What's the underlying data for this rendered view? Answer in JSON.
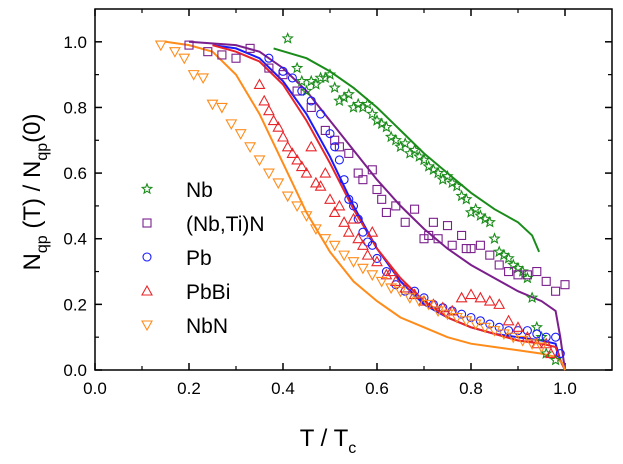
{
  "chart_data": {
    "type": "scatter",
    "xlabel": {
      "main": "T / T",
      "sub": "c"
    },
    "ylabel": {
      "p1": "N",
      "s1": "qp",
      "p2": " (T) / N",
      "s2": "qp",
      "p3": "(0)"
    },
    "xlim": [
      0.0,
      1.1
    ],
    "ylim": [
      0.0,
      1.1
    ],
    "xticks": [
      "0.0",
      "0.2",
      "0.4",
      "0.6",
      "0.8",
      "1.0"
    ],
    "yticks": [
      "0.0",
      "0.2",
      "0.4",
      "0.6",
      "0.8",
      "1.0"
    ],
    "grid": false,
    "legend_position": "left",
    "series": [
      {
        "name": "Nb",
        "marker": "star",
        "color": "#1a8c1a",
        "points": [
          [
            0.41,
            1.01
          ],
          [
            0.43,
            0.92
          ],
          [
            0.44,
            0.88
          ],
          [
            0.45,
            0.85
          ],
          [
            0.46,
            0.88
          ],
          [
            0.47,
            0.87
          ],
          [
            0.48,
            0.89
          ],
          [
            0.49,
            0.89
          ],
          [
            0.5,
            0.9
          ],
          [
            0.51,
            0.86
          ],
          [
            0.52,
            0.82
          ],
          [
            0.53,
            0.83
          ],
          [
            0.54,
            0.84
          ],
          [
            0.55,
            0.8
          ],
          [
            0.56,
            0.81
          ],
          [
            0.57,
            0.8
          ],
          [
            0.58,
            0.81
          ],
          [
            0.59,
            0.78
          ],
          [
            0.6,
            0.76
          ],
          [
            0.61,
            0.75
          ],
          [
            0.62,
            0.74
          ],
          [
            0.63,
            0.71
          ],
          [
            0.64,
            0.7
          ],
          [
            0.65,
            0.68
          ],
          [
            0.66,
            0.69
          ],
          [
            0.67,
            0.66
          ],
          [
            0.68,
            0.67
          ],
          [
            0.69,
            0.65
          ],
          [
            0.7,
            0.64
          ],
          [
            0.71,
            0.62
          ],
          [
            0.72,
            0.61
          ],
          [
            0.73,
            0.6
          ],
          [
            0.74,
            0.58
          ],
          [
            0.75,
            0.59
          ],
          [
            0.76,
            0.57
          ],
          [
            0.77,
            0.56
          ],
          [
            0.78,
            0.53
          ],
          [
            0.79,
            0.52
          ],
          [
            0.8,
            0.48
          ],
          [
            0.81,
            0.49
          ],
          [
            0.82,
            0.47
          ],
          [
            0.83,
            0.46
          ],
          [
            0.84,
            0.45
          ],
          [
            0.85,
            0.4
          ],
          [
            0.86,
            0.36
          ],
          [
            0.87,
            0.35
          ],
          [
            0.88,
            0.34
          ],
          [
            0.89,
            0.32
          ],
          [
            0.9,
            0.31
          ],
          [
            0.91,
            0.3
          ],
          [
            0.92,
            0.28
          ],
          [
            0.93,
            0.22
          ],
          [
            0.94,
            0.13
          ],
          [
            0.95,
            0.1
          ],
          [
            0.96,
            0.05
          ],
          [
            0.98,
            0.03
          ]
        ],
        "curve": [
          [
            0.38,
            0.98
          ],
          [
            0.45,
            0.95
          ],
          [
            0.5,
            0.91
          ],
          [
            0.55,
            0.86
          ],
          [
            0.6,
            0.8
          ],
          [
            0.65,
            0.73
          ],
          [
            0.7,
            0.66
          ],
          [
            0.75,
            0.6
          ],
          [
            0.8,
            0.54
          ],
          [
            0.85,
            0.49
          ],
          [
            0.9,
            0.45
          ],
          [
            0.93,
            0.41
          ],
          [
            0.945,
            0.36
          ]
        ]
      },
      {
        "name": "(Nb,Ti)N",
        "marker": "square",
        "color": "#7b1f8c",
        "points": [
          [
            0.2,
            0.99
          ],
          [
            0.24,
            0.97
          ],
          [
            0.27,
            0.96
          ],
          [
            0.3,
            0.95
          ],
          [
            0.33,
            0.98
          ],
          [
            0.37,
            0.92
          ],
          [
            0.4,
            0.9
          ],
          [
            0.43,
            0.85
          ],
          [
            0.46,
            0.8
          ],
          [
            0.49,
            0.73
          ],
          [
            0.51,
            0.7
          ],
          [
            0.52,
            0.68
          ],
          [
            0.54,
            0.66
          ],
          [
            0.56,
            0.6
          ],
          [
            0.57,
            0.58
          ],
          [
            0.59,
            0.61
          ],
          [
            0.6,
            0.55
          ],
          [
            0.61,
            0.52
          ],
          [
            0.62,
            0.48
          ],
          [
            0.64,
            0.5
          ],
          [
            0.66,
            0.45
          ],
          [
            0.68,
            0.49
          ],
          [
            0.7,
            0.4
          ],
          [
            0.71,
            0.41
          ],
          [
            0.72,
            0.45
          ],
          [
            0.73,
            0.4
          ],
          [
            0.75,
            0.44
          ],
          [
            0.76,
            0.38
          ],
          [
            0.78,
            0.41
          ],
          [
            0.79,
            0.37
          ],
          [
            0.8,
            0.37
          ],
          [
            0.82,
            0.38
          ],
          [
            0.84,
            0.35
          ],
          [
            0.86,
            0.32
          ],
          [
            0.88,
            0.3
          ],
          [
            0.9,
            0.29
          ],
          [
            0.92,
            0.29
          ],
          [
            0.94,
            0.3
          ],
          [
            0.96,
            0.27
          ],
          [
            0.98,
            0.24
          ],
          [
            1.0,
            0.26
          ]
        ],
        "curve": [
          [
            0.2,
            1.0
          ],
          [
            0.3,
            0.99
          ],
          [
            0.35,
            0.97
          ],
          [
            0.4,
            0.92
          ],
          [
            0.45,
            0.85
          ],
          [
            0.5,
            0.76
          ],
          [
            0.55,
            0.67
          ],
          [
            0.6,
            0.58
          ],
          [
            0.65,
            0.5
          ],
          [
            0.7,
            0.43
          ],
          [
            0.75,
            0.37
          ],
          [
            0.8,
            0.32
          ],
          [
            0.85,
            0.28
          ],
          [
            0.9,
            0.24
          ],
          [
            0.95,
            0.21
          ],
          [
            0.98,
            0.18
          ],
          [
            0.99,
            0.1
          ],
          [
            1.0,
            0.0
          ]
        ]
      },
      {
        "name": "Pb",
        "marker": "circle",
        "color": "#1a1aff",
        "points": [
          [
            0.37,
            0.95
          ],
          [
            0.4,
            0.91
          ],
          [
            0.42,
            0.89
          ],
          [
            0.44,
            0.85
          ],
          [
            0.46,
            0.82
          ],
          [
            0.48,
            0.78
          ],
          [
            0.5,
            0.72
          ],
          [
            0.51,
            0.68
          ],
          [
            0.52,
            0.64
          ],
          [
            0.53,
            0.58
          ],
          [
            0.54,
            0.52
          ],
          [
            0.55,
            0.5
          ],
          [
            0.56,
            0.46
          ],
          [
            0.57,
            0.42
          ],
          [
            0.58,
            0.39
          ],
          [
            0.59,
            0.38
          ],
          [
            0.6,
            0.34
          ],
          [
            0.62,
            0.3
          ],
          [
            0.64,
            0.26
          ],
          [
            0.66,
            0.24
          ],
          [
            0.68,
            0.24
          ],
          [
            0.7,
            0.22
          ],
          [
            0.72,
            0.2
          ],
          [
            0.74,
            0.19
          ],
          [
            0.76,
            0.18
          ],
          [
            0.78,
            0.17
          ],
          [
            0.8,
            0.16
          ],
          [
            0.82,
            0.15
          ],
          [
            0.84,
            0.14
          ],
          [
            0.86,
            0.13
          ],
          [
            0.88,
            0.12
          ],
          [
            0.9,
            0.12
          ],
          [
            0.92,
            0.12
          ],
          [
            0.94,
            0.11
          ],
          [
            0.96,
            0.1
          ],
          [
            0.98,
            0.1
          ],
          [
            0.99,
            0.05
          ]
        ],
        "curve": [
          [
            0.25,
            0.99
          ],
          [
            0.3,
            0.98
          ],
          [
            0.35,
            0.95
          ],
          [
            0.4,
            0.88
          ],
          [
            0.45,
            0.78
          ],
          [
            0.5,
            0.65
          ],
          [
            0.55,
            0.5
          ],
          [
            0.6,
            0.37
          ],
          [
            0.65,
            0.27
          ],
          [
            0.7,
            0.2
          ],
          [
            0.75,
            0.16
          ],
          [
            0.8,
            0.13
          ],
          [
            0.85,
            0.11
          ],
          [
            0.9,
            0.1
          ],
          [
            0.95,
            0.09
          ],
          [
            0.98,
            0.08
          ],
          [
            0.99,
            0.03
          ],
          [
            1.0,
            0.0
          ]
        ]
      },
      {
        "name": "PbBi",
        "marker": "triangle-up",
        "color": "#e8262a",
        "points": [
          [
            0.35,
            0.87
          ],
          [
            0.36,
            0.82
          ],
          [
            0.37,
            0.79
          ],
          [
            0.38,
            0.76
          ],
          [
            0.39,
            0.74
          ],
          [
            0.4,
            0.71
          ],
          [
            0.41,
            0.68
          ],
          [
            0.42,
            0.66
          ],
          [
            0.43,
            0.64
          ],
          [
            0.44,
            0.62
          ],
          [
            0.45,
            0.6
          ],
          [
            0.46,
            0.68
          ],
          [
            0.47,
            0.57
          ],
          [
            0.48,
            0.56
          ],
          [
            0.49,
            0.6
          ],
          [
            0.5,
            0.52
          ],
          [
            0.51,
            0.48
          ],
          [
            0.52,
            0.5
          ],
          [
            0.53,
            0.45
          ],
          [
            0.54,
            0.42
          ],
          [
            0.55,
            0.46
          ],
          [
            0.56,
            0.4
          ],
          [
            0.57,
            0.38
          ],
          [
            0.58,
            0.35
          ],
          [
            0.59,
            0.42
          ],
          [
            0.6,
            0.33
          ],
          [
            0.62,
            0.29
          ],
          [
            0.63,
            0.3
          ],
          [
            0.64,
            0.27
          ],
          [
            0.66,
            0.25
          ],
          [
            0.68,
            0.23
          ],
          [
            0.7,
            0.21
          ],
          [
            0.72,
            0.2
          ],
          [
            0.74,
            0.19
          ],
          [
            0.76,
            0.18
          ],
          [
            0.78,
            0.22
          ],
          [
            0.8,
            0.23
          ],
          [
            0.82,
            0.22
          ],
          [
            0.84,
            0.21
          ],
          [
            0.86,
            0.2
          ],
          [
            0.88,
            0.15
          ],
          [
            0.9,
            0.13
          ],
          [
            0.92,
            0.1
          ],
          [
            0.94,
            0.08
          ],
          [
            0.96,
            0.08
          ],
          [
            0.97,
            0.05
          ]
        ],
        "curve": [
          [
            0.25,
            0.99
          ],
          [
            0.3,
            0.97
          ],
          [
            0.35,
            0.94
          ],
          [
            0.4,
            0.87
          ],
          [
            0.45,
            0.76
          ],
          [
            0.5,
            0.63
          ],
          [
            0.55,
            0.49
          ],
          [
            0.6,
            0.37
          ],
          [
            0.65,
            0.28
          ],
          [
            0.7,
            0.21
          ],
          [
            0.75,
            0.16
          ],
          [
            0.8,
            0.13
          ],
          [
            0.85,
            0.11
          ],
          [
            0.9,
            0.09
          ],
          [
            0.95,
            0.08
          ],
          [
            0.98,
            0.07
          ],
          [
            0.99,
            0.03
          ],
          [
            1.0,
            0.0
          ]
        ]
      },
      {
        "name": "NbN",
        "marker": "triangle-down",
        "color": "#ff8c1a",
        "points": [
          [
            0.14,
            0.99
          ],
          [
            0.17,
            0.97
          ],
          [
            0.19,
            0.95
          ],
          [
            0.21,
            0.9
          ],
          [
            0.23,
            0.89
          ],
          [
            0.25,
            0.81
          ],
          [
            0.27,
            0.8
          ],
          [
            0.29,
            0.75
          ],
          [
            0.31,
            0.72
          ],
          [
            0.33,
            0.68
          ],
          [
            0.35,
            0.64
          ],
          [
            0.37,
            0.6
          ],
          [
            0.39,
            0.57
          ],
          [
            0.41,
            0.53
          ],
          [
            0.43,
            0.5
          ],
          [
            0.45,
            0.47
          ],
          [
            0.47,
            0.43
          ],
          [
            0.49,
            0.4
          ],
          [
            0.51,
            0.38
          ],
          [
            0.53,
            0.35
          ],
          [
            0.55,
            0.33
          ],
          [
            0.57,
            0.31
          ],
          [
            0.59,
            0.29
          ],
          [
            0.61,
            0.27
          ],
          [
            0.63,
            0.25
          ],
          [
            0.65,
            0.24
          ],
          [
            0.67,
            0.22
          ],
          [
            0.69,
            0.21
          ],
          [
            0.71,
            0.2
          ],
          [
            0.73,
            0.18
          ],
          [
            0.75,
            0.17
          ],
          [
            0.77,
            0.16
          ],
          [
            0.79,
            0.15
          ],
          [
            0.81,
            0.14
          ],
          [
            0.83,
            0.13
          ],
          [
            0.85,
            0.12
          ],
          [
            0.87,
            0.11
          ],
          [
            0.89,
            0.1
          ],
          [
            0.91,
            0.09
          ],
          [
            0.93,
            0.08
          ],
          [
            0.95,
            0.07
          ]
        ],
        "curve": [
          [
            0.15,
            1.0
          ],
          [
            0.2,
            0.99
          ],
          [
            0.25,
            0.97
          ],
          [
            0.3,
            0.9
          ],
          [
            0.35,
            0.78
          ],
          [
            0.4,
            0.63
          ],
          [
            0.45,
            0.48
          ],
          [
            0.5,
            0.36
          ],
          [
            0.55,
            0.27
          ],
          [
            0.6,
            0.21
          ],
          [
            0.65,
            0.16
          ],
          [
            0.7,
            0.13
          ],
          [
            0.75,
            0.1
          ],
          [
            0.8,
            0.08
          ],
          [
            0.85,
            0.07
          ],
          [
            0.9,
            0.06
          ],
          [
            0.95,
            0.05
          ],
          [
            0.98,
            0.04
          ],
          [
            0.995,
            0.02
          ],
          [
            1.0,
            0.0
          ]
        ]
      }
    ]
  }
}
